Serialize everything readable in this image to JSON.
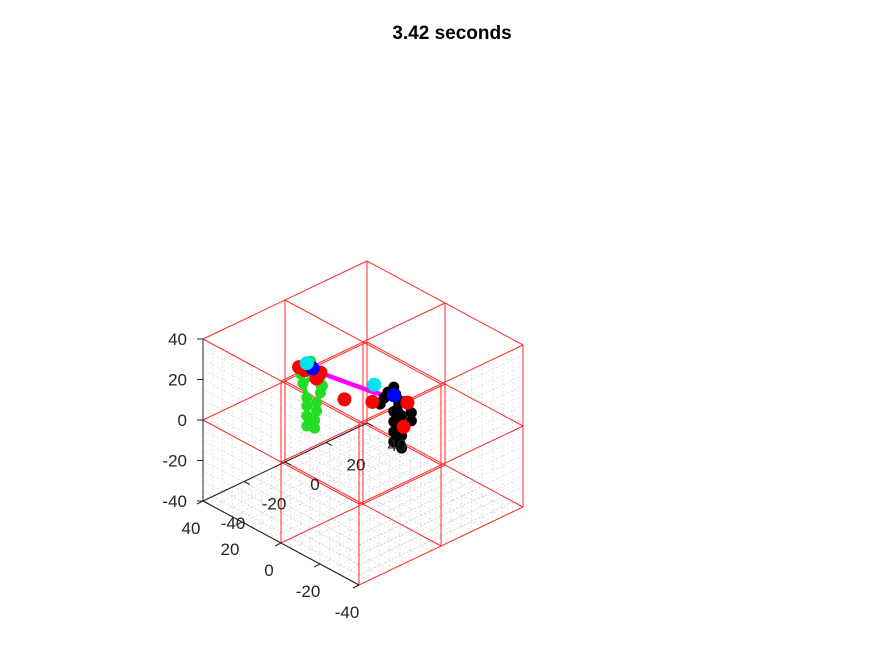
{
  "chart_data": {
    "type": "scatter",
    "title": "3.42 seconds",
    "xlabel": "",
    "ylabel": "",
    "zlabel": "",
    "xlim": [
      -40,
      40
    ],
    "ylim": [
      -40,
      40
    ],
    "zlim": [
      -40,
      40
    ],
    "x_ticks": [
      "40",
      "20",
      "0",
      "-20",
      "-40"
    ],
    "y_ticks": [
      "-40",
      "-20",
      "0",
      "20",
      "40"
    ],
    "z_ticks": [
      "40",
      "20",
      "0",
      "-20",
      "-40"
    ],
    "grid": true,
    "colors": {
      "box": "#ff2a2a",
      "minor_grid": "#c8c8c8",
      "figure_a": "#22dd22",
      "figure_b": "#000000",
      "connector": "#ff00ff",
      "marker_red": "#ff0000",
      "marker_blue": "#0000ff",
      "marker_cyan": "#00e5ee"
    },
    "series": [
      {
        "color": "green",
        "points": [
          [
            10,
            -16,
            33
          ],
          [
            9,
            -16,
            30
          ],
          [
            8,
            -16,
            27
          ],
          [
            14,
            -16,
            28
          ],
          [
            5,
            -16,
            28
          ],
          [
            15,
            -16,
            24
          ],
          [
            4,
            -16,
            24
          ],
          [
            14,
            -16,
            20
          ],
          [
            5,
            -16,
            20
          ],
          [
            12,
            -16,
            14
          ],
          [
            7,
            -16,
            14
          ],
          [
            12,
            -16,
            10
          ],
          [
            7,
            -16,
            10
          ],
          [
            12,
            -16,
            5
          ],
          [
            8,
            -16,
            5
          ],
          [
            12,
            -16,
            0
          ],
          [
            8,
            -16,
            1
          ]
        ],
        "bones": [
          [
            0,
            1
          ],
          [
            1,
            2
          ],
          [
            1,
            3
          ],
          [
            1,
            4
          ],
          [
            3,
            5
          ],
          [
            4,
            6
          ],
          [
            2,
            7
          ],
          [
            2,
            8
          ],
          [
            7,
            9
          ],
          [
            8,
            10
          ],
          [
            9,
            11
          ],
          [
            10,
            12
          ],
          [
            11,
            13
          ],
          [
            12,
            14
          ],
          [
            13,
            15
          ],
          [
            14,
            16
          ]
        ]
      },
      {
        "color": "black",
        "points": [
          [
            -20,
            -4,
            30
          ],
          [
            -21,
            -4,
            27
          ],
          [
            -22,
            -4,
            25
          ],
          [
            -17,
            -4,
            26
          ],
          [
            -26,
            -4,
            26
          ],
          [
            -15,
            -4,
            22
          ],
          [
            -29,
            -4,
            22
          ],
          [
            -13,
            -4,
            18
          ],
          [
            -29,
            -4,
            18
          ],
          [
            -20,
            -4,
            18
          ],
          [
            -24,
            -4,
            18
          ],
          [
            -20,
            -4,
            13
          ],
          [
            -24,
            -4,
            13
          ],
          [
            -20,
            -4,
            8
          ],
          [
            -24,
            -4,
            8
          ],
          [
            -20,
            -4,
            3
          ],
          [
            -24,
            -4,
            2
          ]
        ],
        "bones": [
          [
            0,
            1
          ],
          [
            1,
            2
          ],
          [
            1,
            3
          ],
          [
            1,
            4
          ],
          [
            3,
            5
          ],
          [
            4,
            6
          ],
          [
            5,
            7
          ],
          [
            6,
            8
          ],
          [
            2,
            9
          ],
          [
            2,
            10
          ],
          [
            9,
            11
          ],
          [
            10,
            12
          ],
          [
            11,
            13
          ],
          [
            12,
            14
          ],
          [
            13,
            15
          ],
          [
            14,
            16
          ]
        ]
      }
    ],
    "connector_points": [
      [
        4,
        -16,
        30
      ],
      [
        -9,
        -4,
        22
      ],
      [
        -17,
        -4,
        24
      ],
      [
        -24,
        -4,
        26
      ],
      [
        -27,
        -4,
        23
      ],
      [
        -29,
        -4,
        18
      ]
    ],
    "markers": [
      {
        "color": "red",
        "point": [
          16,
          -16,
          27
        ]
      },
      {
        "color": "red",
        "point": [
          13,
          -16,
          27
        ]
      },
      {
        "color": "red",
        "point": [
          5,
          -16,
          30
        ]
      },
      {
        "color": "red",
        "point": [
          7,
          -16,
          26
        ]
      },
      {
        "color": "red",
        "point": [
          -1,
          -10,
          17
        ]
      },
      {
        "color": "red",
        "point": [
          -9,
          -4,
          17
        ]
      },
      {
        "color": "red",
        "point": [
          -27,
          -4,
          26
        ]
      },
      {
        "color": "red",
        "point": [
          -25,
          -4,
          13
        ]
      },
      {
        "color": "blue",
        "point": [
          9,
          -16,
          30
        ]
      },
      {
        "color": "blue",
        "point": [
          -20,
          -4,
          26
        ]
      },
      {
        "color": "cyan",
        "point": [
          12,
          -16,
          31
        ]
      },
      {
        "color": "cyan",
        "point": [
          -10,
          -4,
          26
        ]
      }
    ]
  }
}
